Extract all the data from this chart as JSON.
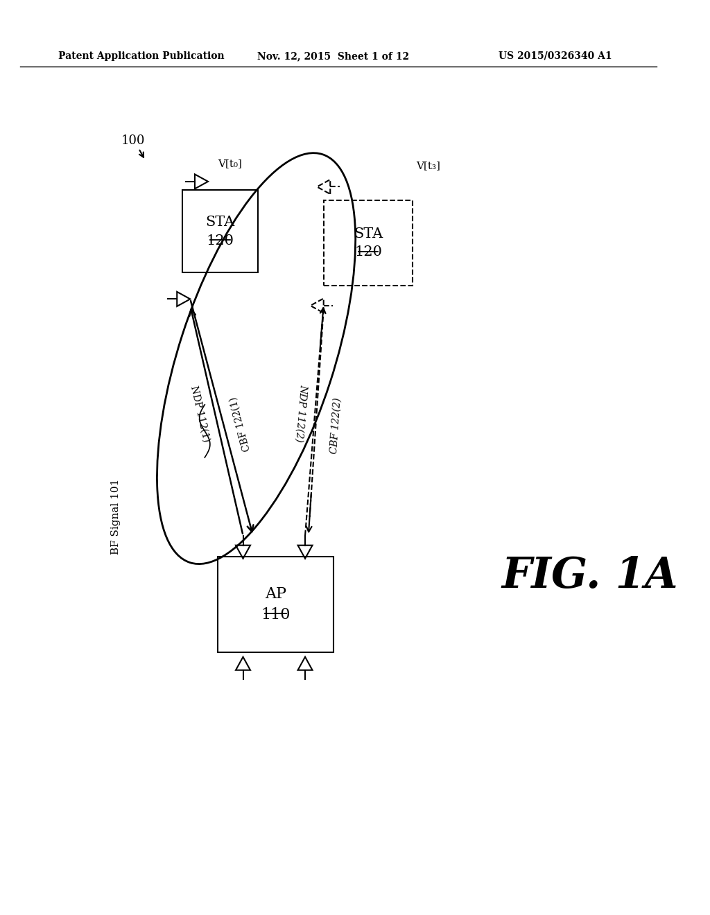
{
  "title_left": "Patent Application Publication",
  "title_mid": "Nov. 12, 2015  Sheet 1 of 12",
  "title_right": "US 2015/0326340 A1",
  "fig_label": "FIG. 1A",
  "diagram_label": "100",
  "bf_signal": "BF Signal 101",
  "ap_label": "AP\n110",
  "sta_solid_label": "STA\n120",
  "sta_dashed_label": "STA\n120",
  "v_t0": "V[t₀]",
  "v_t3": "V[t₃]",
  "ndp1": "NDP 112(1)",
  "ndp2": "NDP 112(2)",
  "cbf1": "CBF 122(1)",
  "cbf2": "CBF 122(2)",
  "bg_color": "#ffffff",
  "line_color": "#000000"
}
